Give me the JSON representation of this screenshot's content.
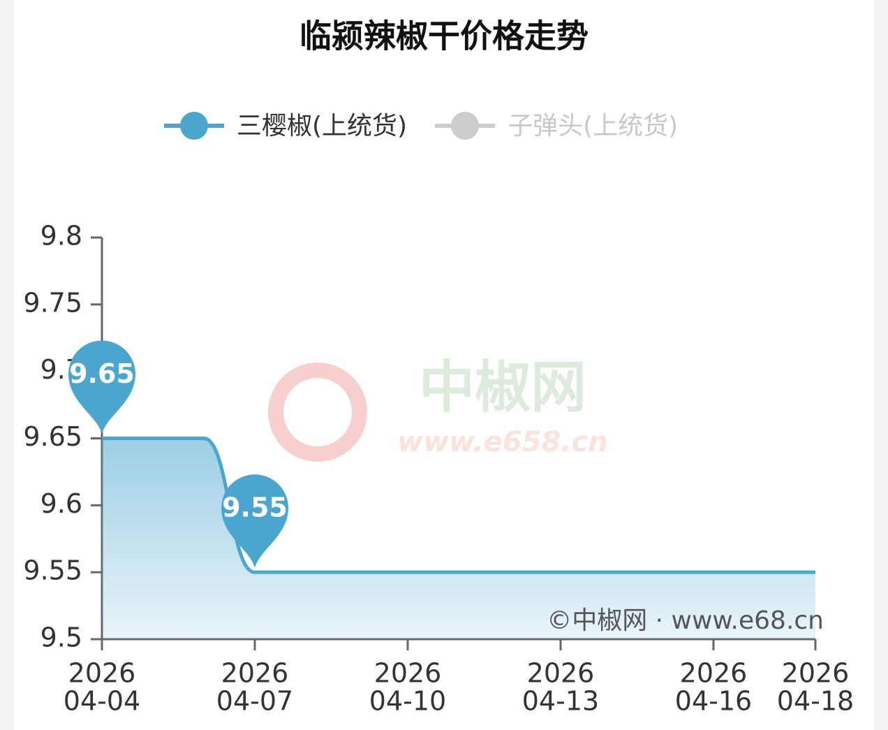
{
  "chart_data": {
    "type": "line",
    "title": "临颍辣椒干价格走势",
    "x": [
      "2026-04-04",
      "2026-04-05",
      "2026-04-06",
      "2026-04-07",
      "2026-04-08",
      "2026-04-09",
      "2026-04-10",
      "2026-04-11",
      "2026-04-12",
      "2026-04-13",
      "2026-04-14",
      "2026-04-15",
      "2026-04-16",
      "2026-04-17",
      "2026-04-18"
    ],
    "series": [
      {
        "name": "三樱椒(上统货)",
        "color": "#4aa6cf",
        "visible": true,
        "values": [
          9.65,
          9.65,
          9.65,
          9.55,
          9.55,
          9.55,
          9.55,
          9.55,
          9.55,
          9.55,
          9.55,
          9.55,
          9.55,
          9.55,
          9.55
        ]
      },
      {
        "name": "子弹头(上统货)",
        "color": "#cccccc",
        "visible": false,
        "values": [
          null,
          null,
          null,
          null,
          null,
          null,
          null,
          null,
          null,
          null,
          null,
          null,
          null,
          null,
          null
        ]
      }
    ],
    "ylim": [
      9.5,
      9.8
    ],
    "yticks": [
      9.5,
      9.55,
      9.6,
      9.65,
      9.7,
      9.75,
      9.8
    ],
    "xticks": [
      {
        "value": "2026-04-04",
        "label": [
          "2026",
          "04-04"
        ]
      },
      {
        "value": "2026-04-07",
        "label": [
          "2026",
          "04-07"
        ]
      },
      {
        "value": "2026-04-10",
        "label": [
          "2026",
          "04-10"
        ]
      },
      {
        "value": "2026-04-13",
        "label": [
          "2026",
          "04-13"
        ]
      },
      {
        "value": "2026-04-16",
        "label": [
          "2026",
          "04-16"
        ]
      },
      {
        "value": "2026-04-18",
        "label": [
          "2026",
          "04-18"
        ]
      }
    ],
    "watermark": {
      "name": "中椒网",
      "url": "www.e658.cn"
    },
    "credit": "©中椒网 · www.e68.cn"
  }
}
